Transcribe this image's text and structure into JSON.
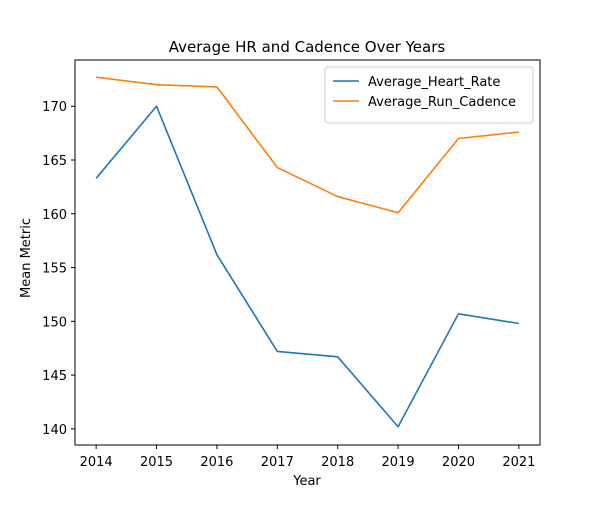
{
  "chart_data": {
    "type": "line",
    "title": "Average HR and Cadence Over Years",
    "xlabel": "Year",
    "ylabel": "Mean Metric",
    "x": [
      2014,
      2015,
      2016,
      2017,
      2018,
      2019,
      2020,
      2021
    ],
    "x_ticks": [
      "2014",
      "2015",
      "2016",
      "2017",
      "2018",
      "2019",
      "2020",
      "2021"
    ],
    "y_ticks": [
      140,
      145,
      150,
      155,
      160,
      165,
      170
    ],
    "xlim": [
      2013.65,
      2021.35
    ],
    "ylim": [
      138.5,
      174.3
    ],
    "grid": false,
    "legend_position": "top-right",
    "series": [
      {
        "name": "Average_Heart_Rate",
        "color": "#1f77b4",
        "values": [
          163.3,
          170.0,
          156.2,
          147.2,
          146.7,
          140.2,
          150.7,
          149.8
        ]
      },
      {
        "name": "Average_Run_Cadence",
        "color": "#ff7f0e",
        "values": [
          172.7,
          172.0,
          171.8,
          164.3,
          161.6,
          160.1,
          167.0,
          167.6
        ]
      }
    ]
  }
}
